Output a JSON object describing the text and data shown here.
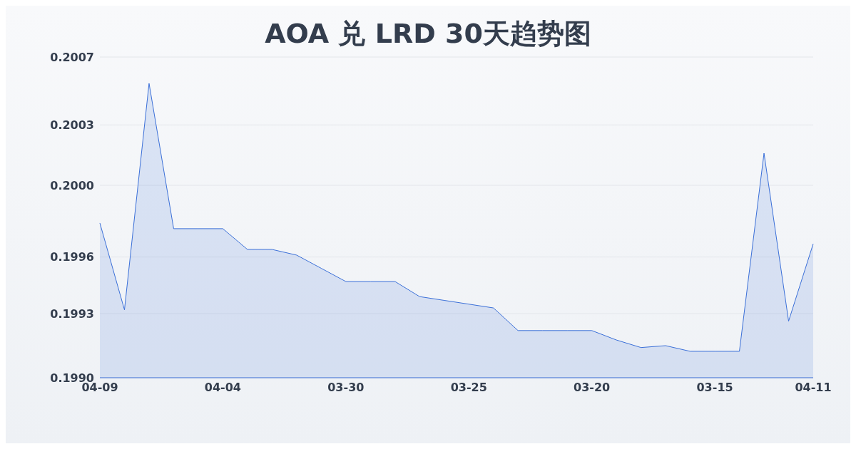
{
  "chart_data": {
    "type": "area",
    "title": "AOA 兑 LRD 30天趋势图",
    "categories": [
      "04-09",
      null,
      null,
      null,
      null,
      "04-04",
      null,
      null,
      null,
      null,
      "03-30",
      null,
      null,
      null,
      null,
      "03-25",
      null,
      null,
      null,
      null,
      "03-20",
      null,
      null,
      null,
      null,
      "03-15",
      null,
      null,
      null,
      "04-11"
    ],
    "series": [
      {
        "color": "#3a6fd8",
        "values": [
          0.19982,
          0.19936,
          0.20056,
          0.19979,
          0.19979,
          0.19979,
          0.19968,
          0.19968,
          0.19965,
          0.19958,
          0.19951,
          0.19951,
          0.19951,
          0.19943,
          0.19941,
          0.19939,
          0.19937,
          0.19925,
          0.19925,
          0.19925,
          0.19925,
          0.1992,
          0.19916,
          0.19917,
          0.19914,
          0.19914,
          0.19914,
          0.20019,
          0.1993,
          0.19971
        ]
      }
    ],
    "ylim": [
      0.199,
      0.2007
    ],
    "yticks": [
      {
        "value": 0.199,
        "label": "0.1990"
      },
      {
        "value": 0.19934,
        "label": "0.1993"
      },
      {
        "value": 0.19964,
        "label": "0.1996"
      },
      {
        "value": 0.20002,
        "label": "0.2000"
      },
      {
        "value": 0.20034,
        "label": "0.2003"
      },
      {
        "value": 0.2007,
        "label": "0.2007"
      }
    ],
    "grid": "y"
  }
}
